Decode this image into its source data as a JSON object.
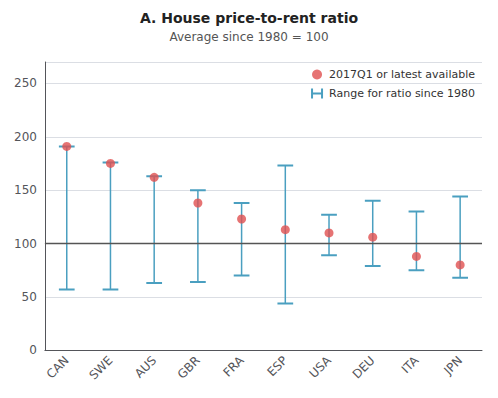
{
  "chart_data": {
    "type": "dot_range",
    "title": "A. House price-to-rent ratio",
    "subtitle": "Average since 1980 = 100",
    "categories": [
      "CAN",
      "SWE",
      "AUS",
      "GBR",
      "FRA",
      "ESP",
      "USA",
      "DEU",
      "ITA",
      "JPN"
    ],
    "series": [
      {
        "name": "2017Q1 or latest available",
        "type": "scatter",
        "marker": "circle",
        "color": "#e05050",
        "values": [
          191,
          175,
          162,
          138,
          123,
          113,
          110,
          106,
          88,
          80
        ]
      },
      {
        "name": "Range for ratio since 1980",
        "type": "range",
        "color": "#4a9fc0",
        "low": [
          57,
          57,
          63,
          64,
          70,
          44,
          89,
          79,
          75,
          68
        ],
        "high": [
          191,
          176,
          163,
          150,
          138,
          173,
          127,
          140,
          130,
          144
        ]
      }
    ],
    "hline": {
      "y": 100,
      "color": "#555555"
    },
    "ylim": [
      0,
      270
    ],
    "yticks": [
      0,
      50,
      100,
      150,
      200,
      250
    ],
    "grid": true,
    "legend": "upper right"
  }
}
